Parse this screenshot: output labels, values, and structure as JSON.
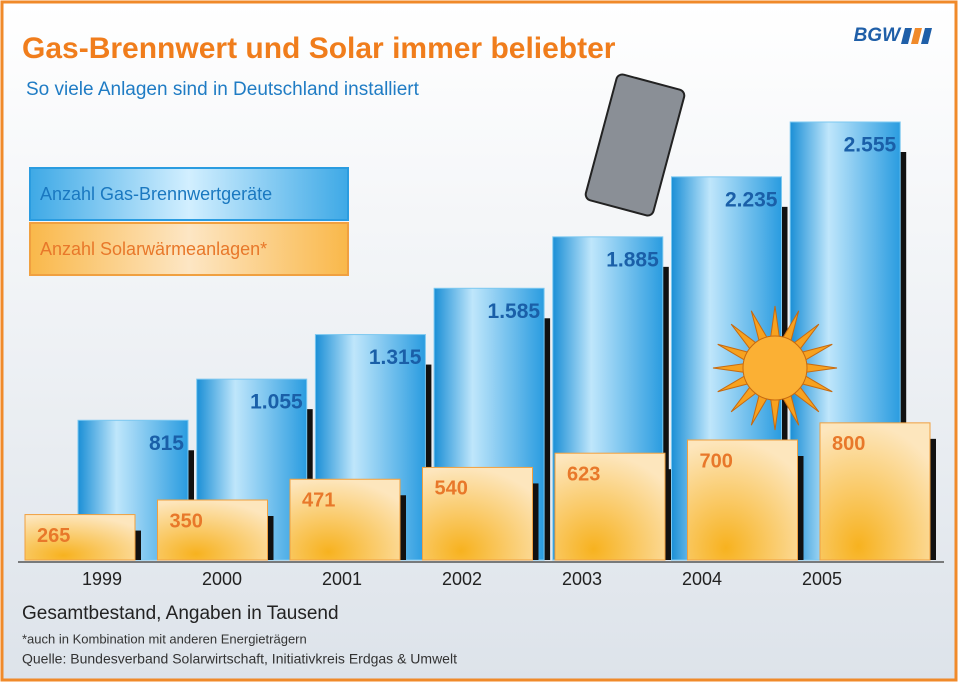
{
  "chart_data": {
    "type": "bar",
    "title": "Gas-Brennwert und Solar immer beliebter",
    "subtitle": "So viele Anlagen sind in Deutschland installiert",
    "logo": "BGW",
    "categories": [
      "1999",
      "2000",
      "2001",
      "2002",
      "2003",
      "2004",
      "2005"
    ],
    "series": [
      {
        "name": "Anzahl Gas-Brennwertgeräte",
        "color": "#3aa6e0",
        "values": [
          815,
          1055,
          1315,
          1585,
          1885,
          2235,
          2555
        ],
        "value_labels": [
          "815",
          "1.055",
          "1.315",
          "1.585",
          "1.885",
          "2.235",
          "2.555"
        ]
      },
      {
        "name": "Anzahl Solarwärmeanlagen*",
        "color": "#f9b84a",
        "values": [
          265,
          350,
          471,
          540,
          623,
          700,
          800
        ]
      }
    ],
    "unit_note": "Gesamtbestand, Angaben in Tausend",
    "footnote": "*auch in Kombination mit anderen Energieträgern",
    "source": "Quelle: Bundesverband Solarwirtschaft, Initiativkreis Erdgas & Umwelt"
  }
}
